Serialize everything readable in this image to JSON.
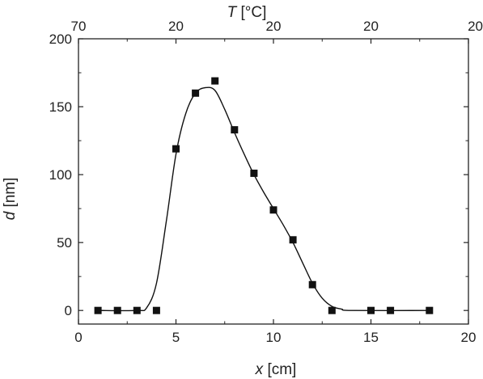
{
  "chart_data": {
    "type": "scatter",
    "xlabel_symbol": "x",
    "xlabel_unit": "[cm]",
    "ylabel_symbol": "d",
    "ylabel_unit": "[nm]",
    "top_label_symbol": "T",
    "top_label_unit": "[°C]",
    "xlim": [
      0,
      20
    ],
    "ylim": [
      -10,
      200
    ],
    "x_ticks": [
      0,
      5,
      10,
      15,
      20
    ],
    "y_ticks": [
      0,
      50,
      100,
      150,
      200
    ],
    "top_ticks": [
      {
        "x": 0,
        "label": "70"
      },
      {
        "x": 5,
        "label": "20"
      },
      {
        "x": 10,
        "label": "20"
      },
      {
        "x": 15,
        "label": "20"
      },
      {
        "x": 20,
        "label": "20"
      }
    ],
    "grid": false,
    "legend": "none",
    "marker_color": "#111111",
    "line_color": "#111111",
    "series": [
      {
        "type": "scatter",
        "x": [
          1,
          2,
          3,
          4,
          5,
          6,
          7,
          8,
          9,
          10,
          11,
          12,
          13,
          15,
          16,
          18
        ],
        "y": [
          0,
          0,
          0,
          0,
          119,
          160,
          169,
          133,
          101,
          74,
          52,
          19,
          0,
          0,
          0,
          0
        ]
      },
      {
        "type": "line",
        "x": [
          1,
          3,
          3.5,
          4,
          4.5,
          5,
          5.5,
          6,
          6.5,
          7,
          7.5,
          8,
          8.5,
          9,
          9.5,
          10,
          10.5,
          11,
          11.5,
          12,
          12.5,
          13,
          13.5,
          14,
          18
        ],
        "y": [
          0,
          0,
          2,
          20,
          65,
          115,
          145,
          160,
          164,
          162,
          148,
          131,
          115,
          100,
          87,
          75,
          63,
          50,
          35,
          20,
          9,
          3,
          1,
          0,
          0
        ]
      }
    ]
  }
}
